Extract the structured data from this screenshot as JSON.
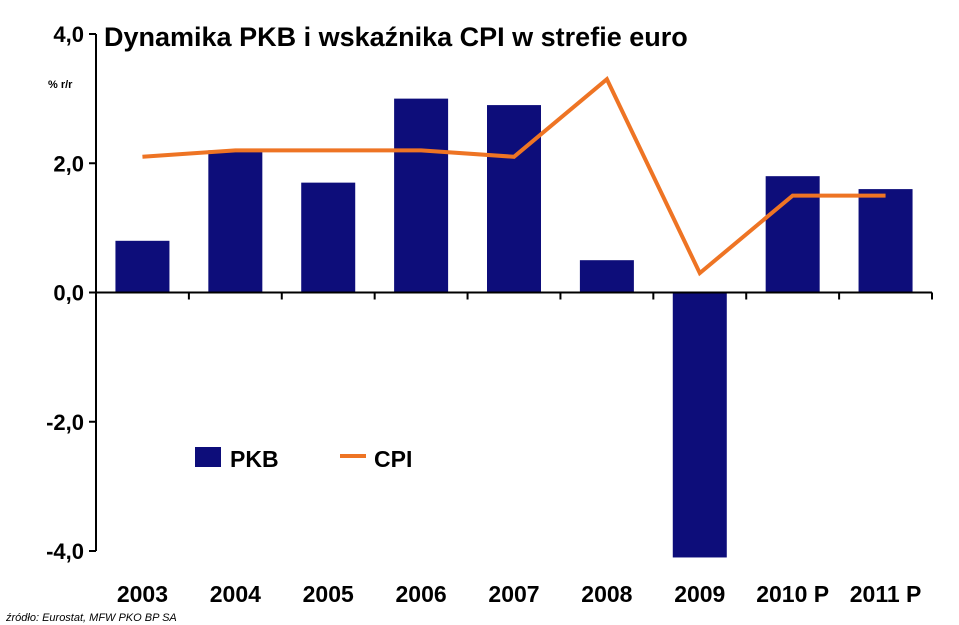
{
  "chart_data": {
    "type": "bar",
    "title": "Dynamika PKB i wskaźnika CPI w strefie euro",
    "ylabel": "% r/r",
    "xlabel": "",
    "categories": [
      "2003",
      "2004",
      "2005",
      "2006",
      "2007",
      "2008",
      "2009",
      "2010 P",
      "2011 P"
    ],
    "series": [
      {
        "name": "PKB",
        "kind": "bar",
        "color": "#0d0d7a",
        "values": [
          0.8,
          2.2,
          1.7,
          3.0,
          2.9,
          0.5,
          -4.1,
          1.8,
          1.6
        ]
      },
      {
        "name": "CPI",
        "kind": "line",
        "color": "#ee7424",
        "values": [
          2.1,
          2.2,
          2.2,
          2.2,
          2.1,
          3.3,
          0.3,
          1.5,
          1.5
        ]
      }
    ],
    "ylim": [
      -4,
      4
    ],
    "yticks": [
      "4,0",
      "2,0",
      "0,0",
      "-2,0",
      "-4,0"
    ],
    "ytick_values": [
      4,
      2,
      0,
      -2,
      -4
    ],
    "grid": false,
    "legend_position": "lower-left"
  },
  "source": "źródło: Eurostat, MFW PKO BP SA"
}
